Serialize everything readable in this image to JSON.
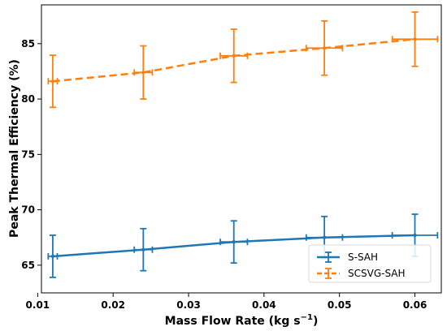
{
  "chart_data": {
    "type": "line",
    "title": "",
    "xlabel_main": "Mass Flow Rate (kg s",
    "xlabel_sup": "−1",
    "xlabel_close": ")",
    "ylabel": "Peak Thermal Efficiency (%)",
    "xlim": [
      0.0105,
      0.0635
    ],
    "ylim": [
      62.5,
      88.5
    ],
    "xticks": [
      0.01,
      0.02,
      0.03,
      0.04,
      0.05,
      0.06
    ],
    "xtick_labels": [
      "0.01",
      "0.02",
      "0.03",
      "0.04",
      "0.05",
      "0.06"
    ],
    "yticks": [
      65,
      70,
      75,
      80,
      85
    ],
    "ytick_labels": [
      "65",
      "70",
      "75",
      "80",
      "85"
    ],
    "grid": false,
    "legend_position": "lower-right",
    "x": [
      0.012,
      0.024,
      0.036,
      0.048,
      0.06
    ],
    "series": [
      {
        "name": "S-SAH",
        "color": "#1f77b4",
        "linestyle": "solid",
        "values": [
          65.8,
          66.4,
          67.1,
          67.5,
          67.7
        ],
        "yerr": [
          1.9,
          1.9,
          1.9,
          1.9,
          1.9
        ],
        "xerr": [
          0.0006,
          0.0012,
          0.0018,
          0.0024,
          0.003
        ]
      },
      {
        "name": "SCSVG-SAH",
        "color": "#ff7f0e",
        "linestyle": "dashed",
        "values": [
          81.6,
          82.4,
          83.9,
          84.6,
          85.4
        ],
        "yerr": [
          2.35,
          2.4,
          2.4,
          2.45,
          2.45
        ],
        "xerr": [
          0.0006,
          0.0012,
          0.0018,
          0.0024,
          0.003
        ]
      }
    ]
  }
}
